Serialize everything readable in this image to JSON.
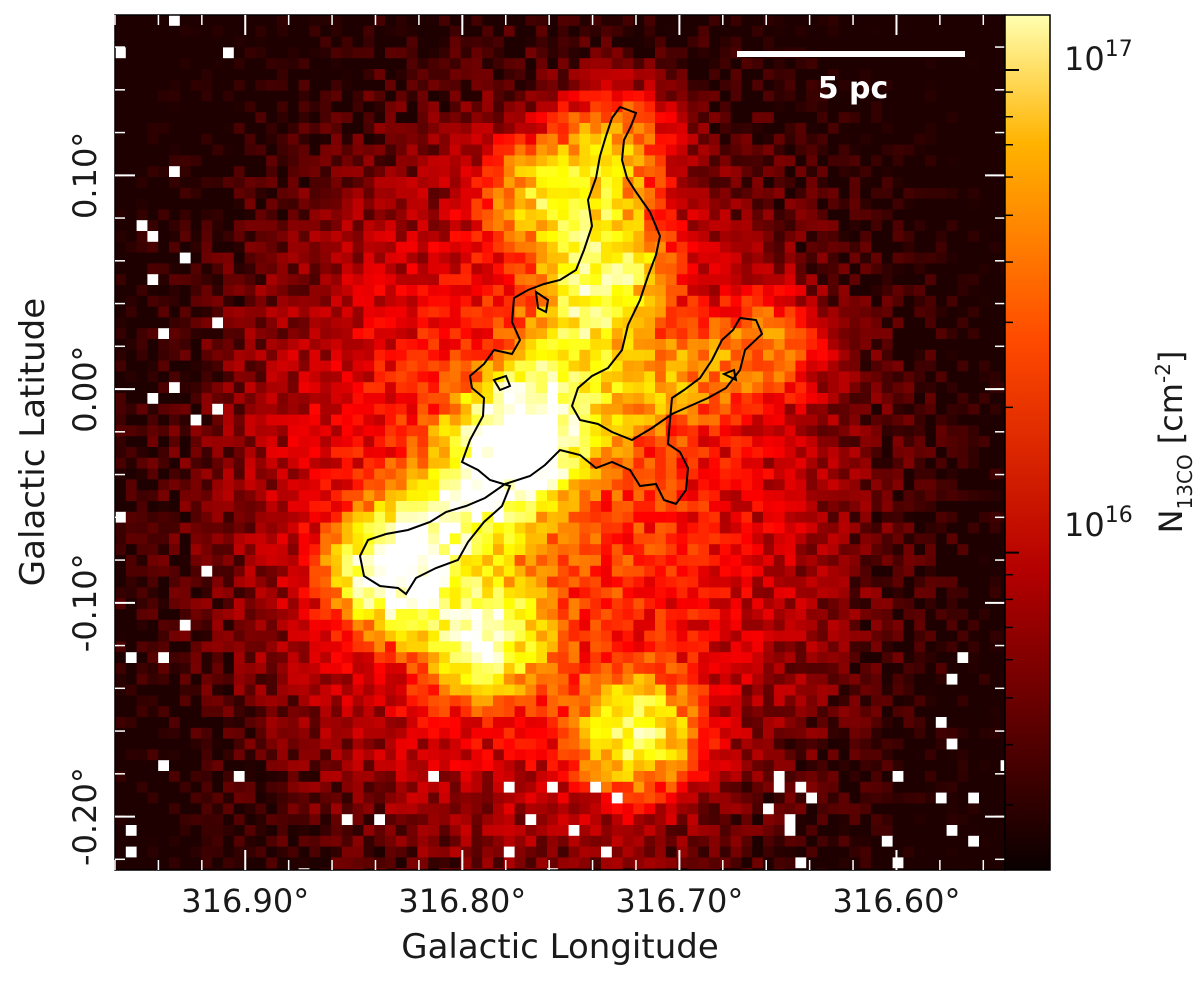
{
  "chart_data": {
    "type": "heatmap",
    "title": "",
    "xlabel": "Galactic Longitude",
    "ylabel": "Galactic Latitude",
    "x_ticks": [
      {
        "value": 316.9,
        "label": "316.90°"
      },
      {
        "value": 316.8,
        "label": "316.80°"
      },
      {
        "value": 316.7,
        "label": "316.70°"
      },
      {
        "value": 316.6,
        "label": "316.60°"
      }
    ],
    "y_ticks": [
      {
        "value": 0.1,
        "label": "0.10°"
      },
      {
        "value": 0.0,
        "label": "0.00°"
      },
      {
        "value": -0.1,
        "label": "-0.10°"
      },
      {
        "value": -0.2,
        "label": "-0.20°"
      }
    ],
    "xlim": [
      316.96,
      316.55
    ],
    "ylim": [
      -0.225,
      0.175
    ],
    "grid": false,
    "colorbar": {
      "label_main": "N",
      "label_sub": "13CO",
      "label_unit": "[cm",
      "label_exp": "-2",
      "label_close": "]",
      "scale": "log",
      "range": [
        2200000000000000.0,
        1.3e+17
      ],
      "ticks": [
        {
          "value": 1e+16,
          "base": "10",
          "exp": "16"
        },
        {
          "value": 1e+17,
          "base": "10",
          "exp": "17"
        }
      ],
      "colormap": "hot"
    },
    "scale_bar": {
      "label": "5 pc"
    },
    "contour_level": "single black contour around the densest filament",
    "structures": [
      {
        "kind": "ridge",
        "l0": 316.79,
        "b0": -0.055,
        "l1": 316.73,
        "b1": 0.055,
        "peak": 9e+16
      },
      {
        "kind": "ridge",
        "l0": 316.74,
        "b0": 0.05,
        "l1": 316.73,
        "b1": 0.115,
        "peak": 6e+16
      },
      {
        "kind": "ridge",
        "l0": 316.835,
        "b0": -0.085,
        "l1": 316.775,
        "b1": -0.03,
        "peak": 1.1e+17
      },
      {
        "kind": "ridge",
        "l0": 316.77,
        "b0": -0.02,
        "l1": 316.66,
        "b1": 0.02,
        "peak": 4e+16
      },
      {
        "kind": "blob",
        "l": 316.775,
        "b": -0.025,
        "peak": 1.3e+17
      },
      {
        "kind": "blob",
        "l": 316.825,
        "b": -0.085,
        "peak": 1.2e+17
      },
      {
        "kind": "blob",
        "l": 316.79,
        "b": -0.115,
        "peak": 1e+17
      },
      {
        "kind": "blob",
        "l": 316.72,
        "b": -0.16,
        "peak": 7e+16
      },
      {
        "kind": "blob",
        "l": 316.76,
        "b": 0.09,
        "peak": 5e+16
      }
    ]
  }
}
